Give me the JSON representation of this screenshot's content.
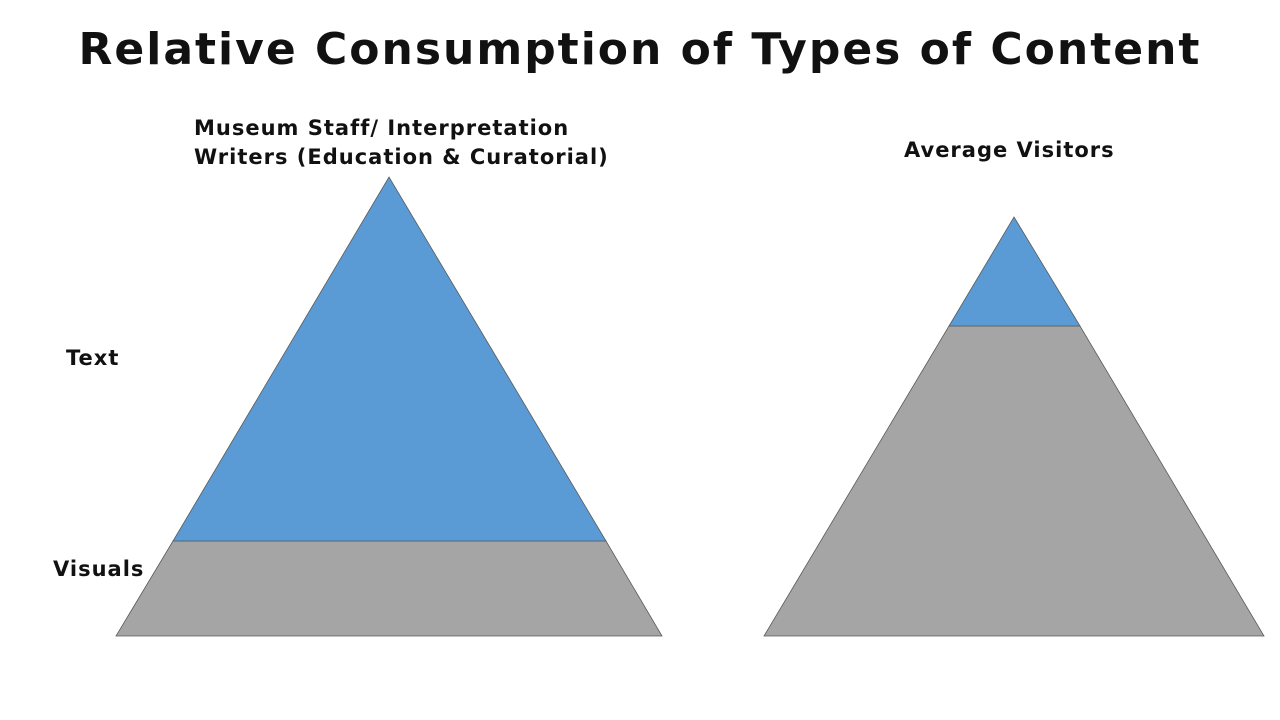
{
  "title": "Relative Consumption of Types of Content",
  "row_labels": {
    "text": "Text",
    "visuals": "Visuals"
  },
  "pyramids": [
    {
      "heading_line1": "Museum Staff/ Interpretation",
      "heading_line2": "Writers (Education & Curatorial)",
      "text_share_of_height": 0.79,
      "visuals_share_of_height": 0.21
    },
    {
      "heading": "Average Visitors",
      "text_share_of_height": 0.26,
      "visuals_share_of_height": 0.74
    }
  ],
  "colors": {
    "text_segment": "#5b9bd5",
    "visuals_segment": "#a5a5a5",
    "outline": "#5a5a5a"
  }
}
